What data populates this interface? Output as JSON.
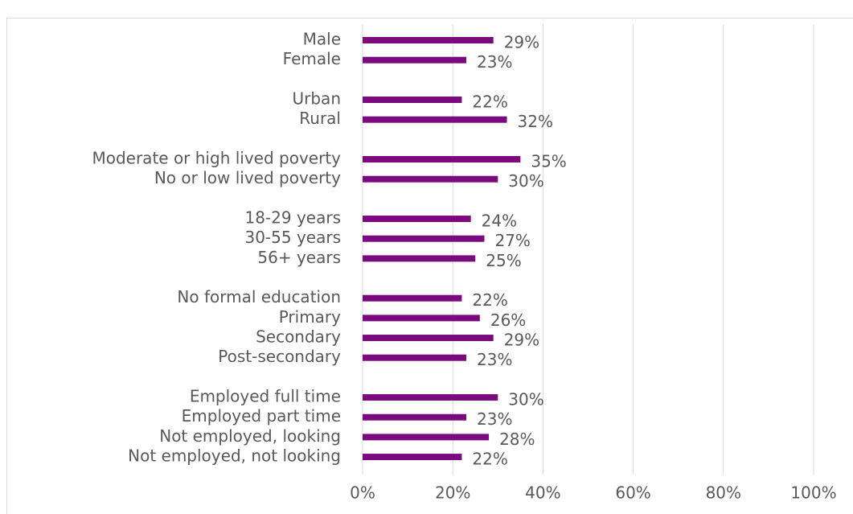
{
  "chart_data": {
    "type": "bar",
    "orientation": "horizontal",
    "categories": [
      "Male",
      "Female",
      null,
      "Urban",
      "Rural",
      null,
      "Moderate or high lived poverty",
      "No or low lived poverty",
      null,
      "18-29 years",
      "30-55 years",
      "56+ years",
      null,
      "No formal education",
      "Primary",
      "Secondary",
      "Post-secondary",
      null,
      "Employed full time",
      "Employed part time",
      "Not employed, looking",
      "Not employed, not looking"
    ],
    "values": [
      29,
      23,
      null,
      22,
      32,
      null,
      35,
      30,
      null,
      24,
      27,
      25,
      null,
      22,
      26,
      29,
      23,
      null,
      30,
      23,
      28,
      22
    ],
    "value_labels": [
      "29%",
      "23%",
      null,
      "22%",
      "32%",
      null,
      "35%",
      "30%",
      null,
      "24%",
      "27%",
      "25%",
      null,
      "22%",
      "26%",
      "29%",
      "23%",
      null,
      "30%",
      "23%",
      "28%",
      "22%"
    ],
    "color": "#7b0a7f",
    "xlim": [
      0,
      100
    ],
    "xticks": [
      {
        "value": 0,
        "label": "0%"
      },
      {
        "value": 20,
        "label": "20%"
      },
      {
        "value": 40,
        "label": "40%"
      },
      {
        "value": 60,
        "label": "60%"
      },
      {
        "value": 80,
        "label": "80%"
      },
      {
        "value": 100,
        "label": "100%"
      }
    ],
    "grid": true
  }
}
